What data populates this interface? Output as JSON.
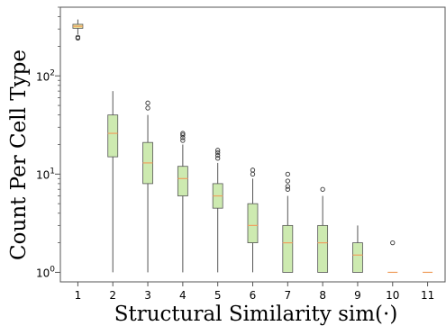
{
  "chart_data": {
    "type": "box",
    "xlabel": "Structural Similarity sim(·)",
    "ylabel": "Count Per Cell Type",
    "yscale": "log",
    "ylim": [
      0.8,
      500
    ],
    "grid": false,
    "legend": "none",
    "categories": [
      "1",
      "2",
      "3",
      "4",
      "5",
      "6",
      "7",
      "8",
      "9",
      "10",
      "11"
    ],
    "y_ticks": [
      {
        "value": 1,
        "label": "10",
        "exp": "0"
      },
      {
        "value": 10,
        "label": "10",
        "exp": "1"
      },
      {
        "value": 100,
        "label": "10",
        "exp": "2"
      }
    ],
    "boxes": [
      {
        "x": "1",
        "whislo": 265,
        "q1": 305,
        "med": 320,
        "q3": 335,
        "whishi": 375,
        "fliers": [
          248,
          242
        ]
      },
      {
        "x": "2",
        "whislo": 1,
        "q1": 15,
        "med": 26,
        "q3": 40,
        "whishi": 70,
        "fliers": []
      },
      {
        "x": "3",
        "whislo": 1,
        "q1": 8,
        "med": 13,
        "q3": 21,
        "whishi": 40,
        "fliers": [
          47,
          53
        ]
      },
      {
        "x": "4",
        "whislo": 1,
        "q1": 6,
        "med": 9,
        "q3": 12,
        "whishi": 20,
        "fliers": [
          22,
          23.5,
          25,
          26
        ]
      },
      {
        "x": "5",
        "whislo": 1,
        "q1": 4.5,
        "med": 6,
        "q3": 8,
        "whishi": 13,
        "fliers": [
          14.5,
          15.5,
          16.5,
          17.5
        ]
      },
      {
        "x": "6",
        "whislo": 1,
        "q1": 2,
        "med": 3,
        "q3": 5,
        "whishi": 9,
        "fliers": [
          10,
          11
        ]
      },
      {
        "x": "7",
        "whislo": 1,
        "q1": 1,
        "med": 2,
        "q3": 3,
        "whishi": 6,
        "fliers": [
          7,
          7.5,
          8.5,
          10
        ]
      },
      {
        "x": "8",
        "whislo": 1,
        "q1": 1,
        "med": 2,
        "q3": 3,
        "whishi": 6,
        "fliers": [
          7
        ]
      },
      {
        "x": "9",
        "whislo": 1,
        "q1": 1,
        "med": 1.5,
        "q3": 2,
        "whishi": 3,
        "fliers": []
      },
      {
        "x": "10",
        "whislo": 1,
        "q1": 1,
        "med": 1,
        "q3": 1,
        "whishi": 1,
        "fliers": [
          2
        ]
      },
      {
        "x": "11",
        "whislo": 1,
        "q1": 1,
        "med": 1,
        "q3": 1,
        "whishi": 1,
        "fliers": []
      }
    ]
  },
  "colors": {
    "box_fill": "#cdeab0",
    "box_fill_first": "#e8e09a",
    "box_edge": "#555555",
    "median": "#f0a060",
    "whisker": "#555555",
    "axis": "#555555"
  }
}
